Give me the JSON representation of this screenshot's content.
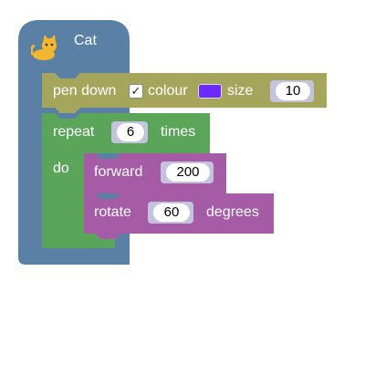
{
  "sprite": {
    "name": "Cat",
    "icon": "cat-icon"
  },
  "pen_block": {
    "label_pen_down": "pen down",
    "checkbox_mark": "✓",
    "label_colour": "colour",
    "colour_value": "#6b2bff",
    "label_size": "size",
    "size_value": "10"
  },
  "repeat_block": {
    "label_repeat": "repeat",
    "count": "6",
    "label_times": "times",
    "label_do": "do"
  },
  "forward_block": {
    "label": "forward",
    "value": "200"
  },
  "rotate_block": {
    "label": "rotate",
    "value": "60",
    "label_degrees": "degrees"
  },
  "colors": {
    "hat": "#5b80a5",
    "pen": "#a5a55b",
    "loop": "#5ba55b",
    "motion": "#a55ba5"
  }
}
